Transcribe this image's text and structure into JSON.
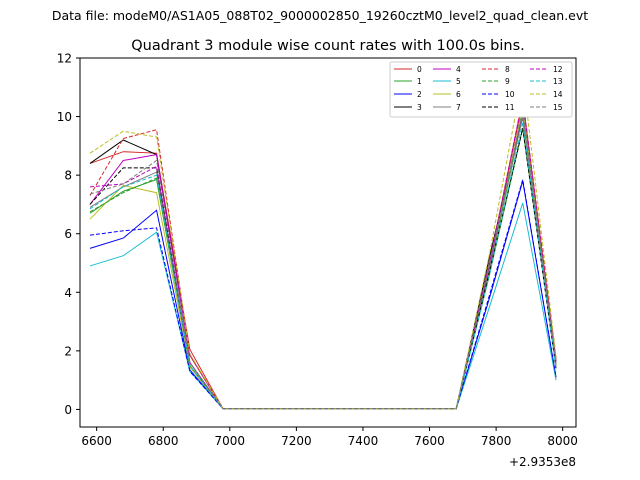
{
  "chart_data": {
    "type": "line",
    "suptitle": "Data file: modeM0/AS1A05_088T02_9000002850_19260cztM0_level2_quad_clean.evt",
    "title": "Quadrant 3 module wise count rates with 100.0s bins.",
    "xlabel": "",
    "ylabel": "",
    "x_offset_label": "+2.9353e8",
    "xlim": [
      6550,
      8040
    ],
    "ylim": [
      -0.6,
      12
    ],
    "xticks": [
      "6600",
      "6800",
      "7000",
      "7200",
      "7400",
      "7600",
      "7800",
      "8000"
    ],
    "yticks": [
      "0",
      "2",
      "4",
      "6",
      "8",
      "10",
      "12"
    ],
    "grid": false,
    "legend_position": "top-right",
    "x": [
      293536580,
      293536680,
      293536780,
      293536880,
      293536980,
      293537080,
      293537180,
      293537280,
      293537380,
      293537480,
      293537580,
      293537680,
      293537780,
      293537880,
      293537980
    ],
    "series": [
      {
        "name": "0",
        "color": "#d62728",
        "dash": false,
        "values": [
          8.4,
          8.8,
          8.75,
          2.05,
          0.02,
          0.02,
          0.02,
          0.02,
          0.02,
          0.02,
          0.02,
          0.02,
          5.0,
          10.5,
          1.7
        ]
      },
      {
        "name": "1",
        "color": "#2ca02c",
        "dash": false,
        "values": [
          6.7,
          7.45,
          7.85,
          1.5,
          0.02,
          0.02,
          0.02,
          0.02,
          0.02,
          0.02,
          0.02,
          0.02,
          4.6,
          9.6,
          1.5
        ]
      },
      {
        "name": "2",
        "color": "#0000ff",
        "dash": false,
        "values": [
          5.5,
          5.85,
          6.8,
          1.35,
          0.02,
          0.02,
          0.02,
          0.02,
          0.02,
          0.02,
          0.02,
          0.02,
          3.8,
          7.8,
          1.1
        ]
      },
      {
        "name": "3",
        "color": "#000000",
        "dash": false,
        "values": [
          8.4,
          9.2,
          8.7,
          1.85,
          0.02,
          0.02,
          0.02,
          0.02,
          0.02,
          0.02,
          0.02,
          0.02,
          5.2,
          10.0,
          1.6
        ]
      },
      {
        "name": "4",
        "color": "#c000c0",
        "dash": false,
        "values": [
          7.0,
          8.5,
          8.7,
          1.85,
          0.02,
          0.02,
          0.02,
          0.02,
          0.02,
          0.02,
          0.02,
          0.02,
          4.9,
          10.2,
          1.5
        ]
      },
      {
        "name": "5",
        "color": "#17becf",
        "dash": false,
        "values": [
          4.9,
          5.25,
          6.05,
          1.3,
          0.02,
          0.02,
          0.02,
          0.02,
          0.02,
          0.02,
          0.02,
          0.02,
          3.5,
          7.05,
          1.0
        ]
      },
      {
        "name": "6",
        "color": "#bcbd22",
        "dash": false,
        "values": [
          6.5,
          7.65,
          7.4,
          1.45,
          0.02,
          0.02,
          0.02,
          0.02,
          0.02,
          0.02,
          0.02,
          0.02,
          4.7,
          10.3,
          1.5
        ]
      },
      {
        "name": "7",
        "color": "#7f7f7f",
        "dash": false,
        "values": [
          6.9,
          7.6,
          8.1,
          1.6,
          0.02,
          0.02,
          0.02,
          0.02,
          0.02,
          0.02,
          0.02,
          0.02,
          4.8,
          10.0,
          1.6
        ]
      },
      {
        "name": "8",
        "color": "#d62728",
        "dash": true,
        "values": [
          7.3,
          9.25,
          9.55,
          1.85,
          0.02,
          0.02,
          0.02,
          0.02,
          0.02,
          0.02,
          0.02,
          0.02,
          5.0,
          10.6,
          1.8
        ]
      },
      {
        "name": "9",
        "color": "#2ca02c",
        "dash": true,
        "values": [
          6.75,
          7.4,
          7.9,
          1.5,
          0.02,
          0.02,
          0.02,
          0.02,
          0.02,
          0.02,
          0.02,
          0.02,
          4.6,
          10.3,
          1.5
        ]
      },
      {
        "name": "10",
        "color": "#0000ff",
        "dash": true,
        "values": [
          5.95,
          6.1,
          6.2,
          1.3,
          0.02,
          0.02,
          0.02,
          0.02,
          0.02,
          0.02,
          0.02,
          0.02,
          3.9,
          7.85,
          1.1
        ]
      },
      {
        "name": "11",
        "color": "#000000",
        "dash": true,
        "values": [
          7.0,
          8.25,
          8.25,
          1.6,
          0.02,
          0.02,
          0.02,
          0.02,
          0.02,
          0.02,
          0.02,
          0.02,
          4.7,
          9.6,
          1.4
        ]
      },
      {
        "name": "12",
        "color": "#c000c0",
        "dash": true,
        "values": [
          7.6,
          7.7,
          8.3,
          1.6,
          0.02,
          0.02,
          0.02,
          0.02,
          0.02,
          0.02,
          0.02,
          0.02,
          5.0,
          10.6,
          1.6
        ]
      },
      {
        "name": "13",
        "color": "#17becf",
        "dash": true,
        "values": [
          6.85,
          7.6,
          8.0,
          1.5,
          0.02,
          0.02,
          0.02,
          0.02,
          0.02,
          0.02,
          0.02,
          0.02,
          4.6,
          9.8,
          1.4
        ]
      },
      {
        "name": "14",
        "color": "#bcbd22",
        "dash": true,
        "values": [
          8.75,
          9.5,
          9.3,
          1.9,
          0.02,
          0.02,
          0.02,
          0.02,
          0.02,
          0.02,
          0.02,
          0.02,
          5.3,
          11.4,
          1.8
        ]
      },
      {
        "name": "15",
        "color": "#7f7f7f",
        "dash": true,
        "values": [
          7.35,
          7.7,
          8.5,
          1.6,
          0.02,
          0.02,
          0.02,
          0.02,
          0.02,
          0.02,
          0.02,
          0.02,
          5.0,
          10.2,
          1.6
        ]
      }
    ]
  }
}
